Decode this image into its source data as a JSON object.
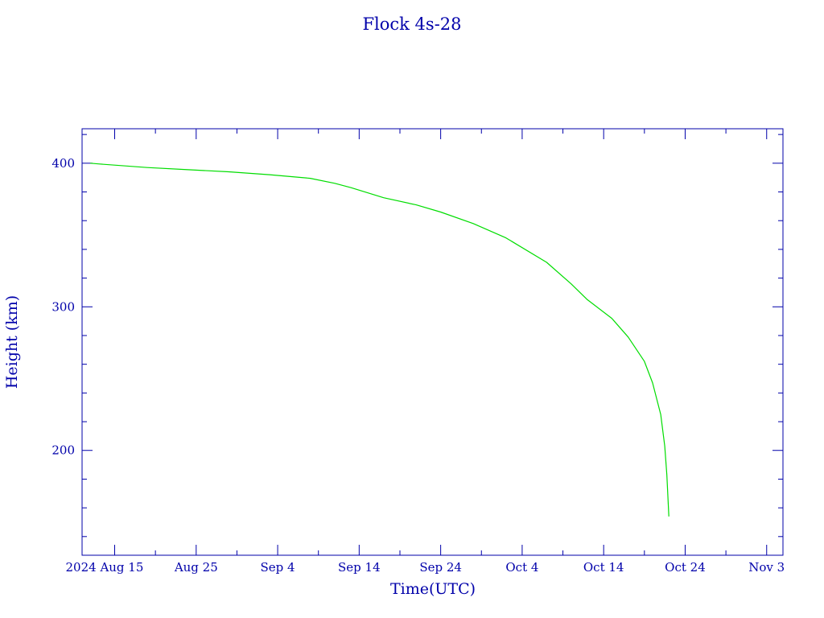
{
  "chart_data": {
    "type": "line",
    "title": "Flock 4s-28",
    "xlabel": "Time(UTC)",
    "ylabel": "Height (km)",
    "colors": {
      "axes": "#0000aa",
      "line": "#00dd00",
      "background": "#ffffff"
    },
    "xlim": [
      "2024-08-11",
      "2024-11-05"
    ],
    "ylim": [
      127,
      424
    ],
    "x_ticks": [
      {
        "date": "2024-08-15",
        "label": "2024 Aug 15"
      },
      {
        "date": "2024-08-25",
        "label": "Aug 25"
      },
      {
        "date": "2024-09-04",
        "label": "Sep  4"
      },
      {
        "date": "2024-09-14",
        "label": "Sep 14"
      },
      {
        "date": "2024-09-24",
        "label": "Sep 24"
      },
      {
        "date": "2024-10-04",
        "label": "Oct  4"
      },
      {
        "date": "2024-10-14",
        "label": "Oct 14"
      },
      {
        "date": "2024-10-24",
        "label": "Oct 24"
      },
      {
        "date": "2024-11-03",
        "label": "Nov  3"
      }
    ],
    "x_minor_tick_days": 5,
    "y_ticks": [
      {
        "value": 200,
        "label": "200"
      },
      {
        "value": 300,
        "label": "300"
      },
      {
        "value": 400,
        "label": "400"
      }
    ],
    "y_minor_step": 20,
    "grid": false,
    "series": [
      {
        "points": [
          {
            "x": "2024-08-12",
            "y": 400
          },
          {
            "x": "2024-08-13",
            "y": 399.5
          },
          {
            "x": "2024-08-19",
            "y": 397
          },
          {
            "x": "2024-08-24",
            "y": 395.5
          },
          {
            "x": "2024-08-29",
            "y": 394
          },
          {
            "x": "2024-09-03",
            "y": 392
          },
          {
            "x": "2024-09-08",
            "y": 389.5
          },
          {
            "x": "2024-09-11",
            "y": 386
          },
          {
            "x": "2024-09-13",
            "y": 383
          },
          {
            "x": "2024-09-17",
            "y": 376
          },
          {
            "x": "2024-09-21",
            "y": 371
          },
          {
            "x": "2024-09-24",
            "y": 366
          },
          {
            "x": "2024-09-28",
            "y": 358
          },
          {
            "x": "2024-10-02",
            "y": 348
          },
          {
            "x": "2024-10-07",
            "y": 331
          },
          {
            "x": "2024-10-10",
            "y": 316
          },
          {
            "x": "2024-10-12",
            "y": 305
          },
          {
            "x": "2024-10-15",
            "y": 292
          },
          {
            "x": "2024-10-17",
            "y": 279
          },
          {
            "x": "2024-10-19",
            "y": 262
          },
          {
            "x": "2024-10-20",
            "y": 247
          },
          {
            "x": "2024-10-21",
            "y": 225
          },
          {
            "x": "2024-10-21T12:00",
            "y": 203
          },
          {
            "x": "2024-10-21T18:00",
            "y": 183
          },
          {
            "x": "2024-10-22",
            "y": 154
          }
        ]
      }
    ]
  }
}
